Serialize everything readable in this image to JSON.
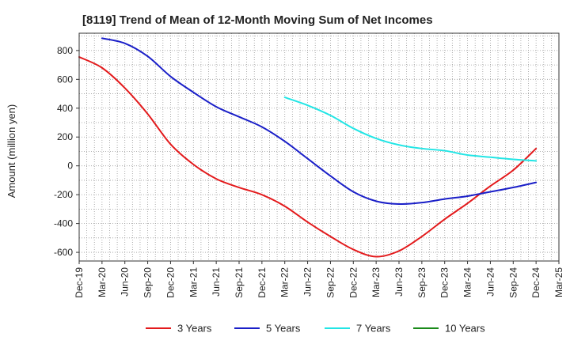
{
  "chart_data": {
    "type": "line",
    "title": "[8119]  Trend of Mean of 12-Month Moving Sum of Net Incomes",
    "xlabel": "",
    "ylabel": "Amount (million yen)",
    "ylim": [
      -660,
      920
    ],
    "yticks": [
      -600,
      -400,
      -200,
      0,
      200,
      400,
      600,
      800
    ],
    "categories": [
      "Dec-19",
      "Mar-20",
      "Jun-20",
      "Sep-20",
      "Dec-20",
      "Mar-21",
      "Jun-21",
      "Sep-21",
      "Dec-21",
      "Mar-22",
      "Jun-22",
      "Sep-22",
      "Dec-22",
      "Mar-23",
      "Jun-23",
      "Sep-23",
      "Dec-23",
      "Mar-24",
      "Jun-24",
      "Sep-24",
      "Dec-24",
      "Mar-25"
    ],
    "grid": true,
    "legend_position": "bottom",
    "series": [
      {
        "name": "3 Years",
        "color": "#e31a1c",
        "values": [
          755,
          680,
          540,
          360,
          150,
          10,
          -90,
          -150,
          -200,
          -280,
          -390,
          -490,
          -580,
          -630,
          -590,
          -490,
          -370,
          -260,
          -140,
          -30,
          120,
          null
        ]
      },
      {
        "name": "5 Years",
        "color": "#1a1fc8",
        "values": [
          null,
          885,
          850,
          760,
          620,
          510,
          410,
          340,
          270,
          170,
          50,
          -70,
          -180,
          -245,
          -265,
          -255,
          -230,
          -210,
          -180,
          -150,
          -115,
          null
        ]
      },
      {
        "name": "7 Years",
        "color": "#22e5e5",
        "values": [
          null,
          null,
          null,
          null,
          null,
          null,
          null,
          null,
          null,
          475,
          420,
          350,
          260,
          190,
          145,
          120,
          105,
          75,
          60,
          45,
          35,
          null
        ]
      },
      {
        "name": "10 Years",
        "color": "#1a8a1a",
        "values": [
          null,
          null,
          null,
          null,
          null,
          null,
          null,
          null,
          null,
          null,
          null,
          null,
          null,
          null,
          null,
          null,
          null,
          null,
          null,
          null,
          null,
          null
        ]
      }
    ]
  }
}
